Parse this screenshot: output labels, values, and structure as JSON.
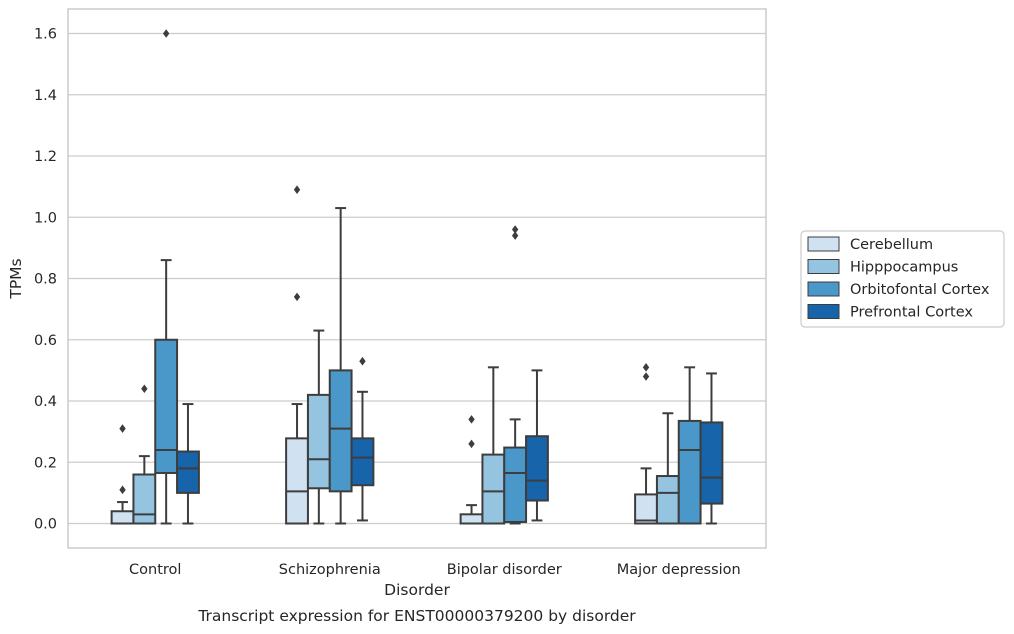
{
  "chart_data": {
    "type": "box",
    "title": "Transcript expression for ENST00000379200 by disorder",
    "xlabel": "Disorder",
    "ylabel": "TPMs",
    "ylim": [
      -0.08,
      1.68
    ],
    "yticks": [
      0.0,
      0.2,
      0.4,
      0.6,
      0.8,
      1.0,
      1.2,
      1.4,
      1.6
    ],
    "ytick_labels": [
      "0.0",
      "0.2",
      "0.4",
      "0.6",
      "0.8",
      "1.0",
      "1.2",
      "1.4",
      "1.6"
    ],
    "categories": [
      "Control",
      "Schizophrenia",
      "Bipolar disorder",
      "Major depression"
    ],
    "grid": "horizontal",
    "legend_position": "right",
    "series": [
      {
        "name": "Cerebellum",
        "color": "#d0e1f2",
        "boxes": [
          {
            "whisker_low": 0.0,
            "q1": 0.0,
            "median": 0.0,
            "q3": 0.04,
            "whisker_high": 0.07,
            "outliers": [
              0.11,
              0.31
            ]
          },
          {
            "whisker_low": 0.0,
            "q1": 0.0,
            "median": 0.105,
            "q3": 0.278,
            "whisker_high": 0.39,
            "outliers": [
              0.74,
              1.09
            ]
          },
          {
            "whisker_low": 0.0,
            "q1": 0.0,
            "median": 0.0,
            "q3": 0.03,
            "whisker_high": 0.06,
            "outliers": [
              0.26,
              0.34
            ]
          },
          {
            "whisker_low": 0.0,
            "q1": 0.0,
            "median": 0.01,
            "q3": 0.095,
            "whisker_high": 0.18,
            "outliers": [
              0.48,
              0.51
            ]
          }
        ]
      },
      {
        "name": "Hipppocampus",
        "color": "#94c4df",
        "boxes": [
          {
            "whisker_low": 0.0,
            "q1": 0.0,
            "median": 0.03,
            "q3": 0.16,
            "whisker_high": 0.22,
            "outliers": [
              0.44
            ]
          },
          {
            "whisker_low": 0.0,
            "q1": 0.115,
            "median": 0.21,
            "q3": 0.42,
            "whisker_high": 0.63,
            "outliers": []
          },
          {
            "whisker_low": 0.0,
            "q1": 0.0,
            "median": 0.105,
            "q3": 0.225,
            "whisker_high": 0.51,
            "outliers": []
          },
          {
            "whisker_low": 0.0,
            "q1": 0.0,
            "median": 0.1,
            "q3": 0.155,
            "whisker_high": 0.36,
            "outliers": []
          }
        ]
      },
      {
        "name": "Orbitofontal Cortex",
        "color": "#4a98c9",
        "boxes": [
          {
            "whisker_low": 0.0,
            "q1": 0.165,
            "median": 0.24,
            "q3": 0.6,
            "whisker_high": 0.86,
            "outliers": [
              1.6
            ]
          },
          {
            "whisker_low": 0.0,
            "q1": 0.105,
            "median": 0.31,
            "q3": 0.5,
            "whisker_high": 1.03,
            "outliers": []
          },
          {
            "whisker_low": 0.0,
            "q1": 0.005,
            "median": 0.165,
            "q3": 0.248,
            "whisker_high": 0.34,
            "outliers": [
              0.94,
              0.96
            ]
          },
          {
            "whisker_low": 0.0,
            "q1": 0.0,
            "median": 0.24,
            "q3": 0.335,
            "whisker_high": 0.51,
            "outliers": []
          }
        ]
      },
      {
        "name": "Prefrontal Cortex",
        "color": "#1764ab",
        "boxes": [
          {
            "whisker_low": 0.0,
            "q1": 0.1,
            "median": 0.18,
            "q3": 0.235,
            "whisker_high": 0.39,
            "outliers": []
          },
          {
            "whisker_low": 0.01,
            "q1": 0.125,
            "median": 0.215,
            "q3": 0.278,
            "whisker_high": 0.43,
            "outliers": [
              0.53
            ]
          },
          {
            "whisker_low": 0.01,
            "q1": 0.075,
            "median": 0.14,
            "q3": 0.285,
            "whisker_high": 0.5,
            "outliers": []
          },
          {
            "whisker_low": 0.0,
            "q1": 0.065,
            "median": 0.15,
            "q3": 0.33,
            "whisker_high": 0.49,
            "outliers": []
          }
        ]
      }
    ],
    "colors": {
      "grid": "#cccccc",
      "frame": "#cccccc",
      "box_edge": "#3d3d3d",
      "legend_edge": "#cccccc"
    }
  }
}
